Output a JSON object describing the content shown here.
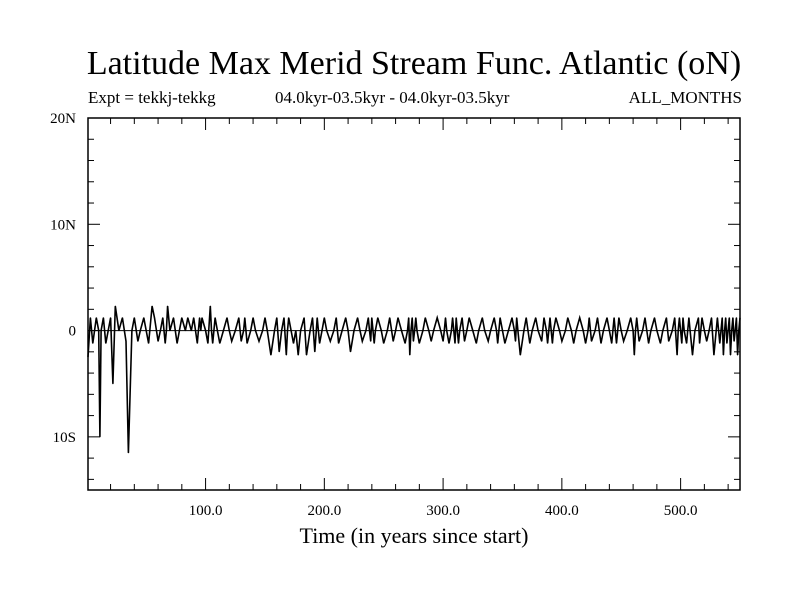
{
  "header": {
    "title": "Latitude Max Merid Stream Func. Atlantic (oN)",
    "expt": "Expt = tekkj-tekkg",
    "period": "04.0kyr-03.5kyr - 04.0kyr-03.5kyr",
    "months": "ALL_MONTHS"
  },
  "chart_data": {
    "type": "line",
    "title": "Latitude Max Merid Stream Func. Atlantic (oN)",
    "xlabel": "Time (in years since start)",
    "ylabel": "",
    "xlim": [
      1,
      550
    ],
    "ylim": [
      -15,
      20
    ],
    "grid": false,
    "x_ticks": [
      100,
      200,
      300,
      400,
      500
    ],
    "x_tick_labels": [
      "100.0",
      "200.0",
      "300.0",
      "400.0",
      "500.0"
    ],
    "y_ticks": [
      -10,
      0,
      10,
      20
    ],
    "y_tick_labels": [
      "10S",
      "0",
      "10N",
      "20N"
    ],
    "x": [
      1,
      3,
      5,
      8,
      10,
      11,
      12,
      14,
      16,
      18,
      20,
      22,
      24,
      27,
      30,
      33,
      35,
      38,
      40,
      43,
      45,
      48,
      50,
      52,
      55,
      57,
      60,
      62,
      64,
      65,
      66,
      67,
      68,
      70,
      73,
      76,
      78,
      80,
      83,
      85,
      88,
      90,
      93,
      94,
      95,
      96,
      97,
      100,
      102,
      104,
      105,
      106,
      107,
      108,
      110,
      112,
      115,
      118,
      120,
      122,
      125,
      128,
      130,
      132,
      133,
      135,
      138,
      140,
      142,
      145,
      148,
      150,
      152,
      155,
      158,
      160,
      162,
      164,
      166,
      168,
      169,
      170,
      172,
      174,
      176,
      178,
      180,
      183,
      185,
      188,
      190,
      192,
      194,
      195,
      196,
      198,
      200,
      202,
      205,
      208,
      210,
      212,
      215,
      218,
      220,
      222,
      225,
      228,
      230,
      232,
      235,
      237,
      238,
      239,
      240,
      241,
      242,
      243,
      245,
      248,
      250,
      253,
      255,
      258,
      260,
      262,
      265,
      268,
      270,
      271,
      272,
      273,
      274,
      275,
      276,
      277,
      278,
      280,
      283,
      285,
      288,
      290,
      292,
      295,
      298,
      300,
      301,
      302,
      303,
      305,
      307,
      308,
      309,
      310,
      311,
      312,
      313,
      314,
      316,
      318,
      320,
      322,
      325,
      328,
      330,
      333,
      335,
      338,
      340,
      343,
      345,
      346,
      347,
      348,
      350,
      352,
      355,
      358,
      360,
      361,
      362,
      363,
      365,
      368,
      370,
      373,
      375,
      378,
      380,
      383,
      385,
      387,
      388,
      389,
      390,
      391,
      392,
      393,
      395,
      398,
      400,
      403,
      405,
      408,
      410,
      412,
      415,
      418,
      420,
      422,
      423,
      425,
      428,
      430,
      433,
      435,
      438,
      440,
      442,
      444,
      445,
      446,
      447,
      448,
      450,
      452,
      455,
      458,
      460,
      461,
      462,
      463,
      465,
      468,
      470,
      473,
      475,
      478,
      480,
      483,
      485,
      488,
      490,
      493,
      495,
      497,
      498,
      499,
      500,
      501,
      502,
      503,
      505,
      506,
      507,
      508,
      510,
      512,
      515,
      516,
      517,
      518,
      520,
      522,
      524,
      526,
      528,
      530,
      531,
      532,
      533,
      534,
      535,
      536,
      537,
      538,
      539,
      540,
      541,
      542,
      543,
      544,
      545,
      546,
      547,
      548,
      549,
      550
    ],
    "values": [
      -2.5,
      1.2,
      -1.2,
      1.2,
      0,
      -10,
      0,
      1.2,
      -1.2,
      0,
      1.2,
      -5,
      2.3,
      0,
      1.2,
      -1,
      -11.5,
      0,
      1.2,
      -1,
      0,
      1.2,
      0,
      -1.2,
      2.3,
      1.2,
      -1,
      0,
      1.2,
      0,
      -1.2,
      0,
      2.3,
      0,
      1.2,
      -1.2,
      0,
      1.2,
      0,
      1.2,
      0,
      1.2,
      -1.2,
      0,
      1.2,
      0,
      1.2,
      0,
      -1.2,
      2.3,
      0,
      -1.2,
      0,
      1.2,
      0,
      -1.2,
      0,
      1.2,
      0,
      -1,
      0,
      1.2,
      -1,
      0,
      1.2,
      -1.2,
      0,
      1.2,
      0,
      -1,
      0,
      1.2,
      0,
      -2.3,
      0,
      1.2,
      -2,
      0,
      1.2,
      -2.3,
      0,
      1.2,
      0,
      -1.2,
      0,
      -2.3,
      0,
      1.2,
      -2.3,
      0,
      1.2,
      -2,
      1.2,
      0,
      -1.2,
      0,
      1.2,
      0,
      -1,
      0,
      1.2,
      -1.2,
      0,
      1.2,
      0,
      -2,
      0,
      1.2,
      0,
      -1,
      0,
      1.2,
      0,
      -1,
      1.2,
      0,
      -1.2,
      0,
      1.2,
      0,
      -1.2,
      0,
      1.2,
      -1,
      0,
      1.2,
      0,
      -1.2,
      0,
      1.2,
      -2.3,
      0,
      1.2,
      -1,
      0,
      1.2,
      0,
      -1.2,
      0,
      1.2,
      0,
      -1,
      0,
      1.2,
      0,
      -1,
      0,
      1.2,
      0,
      -1.2,
      0,
      1.2,
      0,
      -1.2,
      1.2,
      0,
      -1.2,
      0,
      1.2,
      -1,
      0,
      1.2,
      0,
      -1.2,
      0,
      1.2,
      0,
      -1,
      0,
      1.2,
      0,
      -1.2,
      0,
      1.2,
      0,
      -1.2,
      0,
      1.2,
      0,
      -1,
      1.2,
      0,
      -2.3,
      0,
      1.2,
      -1.2,
      0,
      1.2,
      0,
      -1,
      1.2,
      0,
      -1.2,
      0,
      1.2,
      0,
      -1.2,
      0,
      1.2,
      0,
      -1,
      0,
      1.2,
      0,
      -1.2,
      0,
      1.2,
      0,
      -1.2,
      0,
      1.2,
      -1,
      0,
      1.2,
      -1.2,
      0,
      1.2,
      0,
      -1.2,
      1.2,
      0,
      -1.2,
      0,
      1.2,
      0,
      -1,
      0,
      1.2,
      0,
      -2.3,
      0,
      1.2,
      -1,
      0,
      1.2,
      -1.2,
      0,
      1.2,
      0,
      -1.2,
      0,
      1.2,
      -1,
      0,
      1.2,
      -2.3,
      0,
      1.2,
      0,
      -1.2,
      1.2,
      0,
      -1.2,
      0,
      1.2,
      0,
      -2.3,
      0,
      1.2,
      -1.2,
      0,
      1.2,
      0,
      -1,
      0,
      1.2,
      -2.3,
      0,
      1.2,
      0,
      -1.2,
      0,
      1.2,
      -2.3,
      0,
      1.2,
      -1.2,
      0,
      1.2,
      -2.3,
      0,
      1.2,
      -1,
      0,
      1.2,
      -2.3,
      0,
      1.2
    ]
  }
}
